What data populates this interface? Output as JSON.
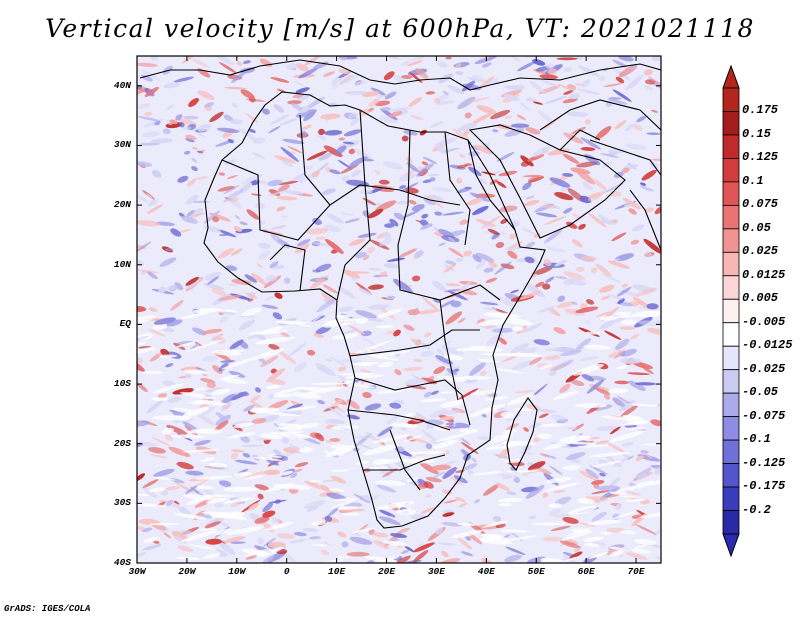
{
  "title": "Vertical velocity [m/s] at 600hPa, VT: 2021021118",
  "credit": "GrADS: IGES/COLA",
  "map": {
    "lon_range": [
      -30,
      75
    ],
    "lat_range": [
      -40,
      45
    ],
    "lat_ticks": [
      {
        "value": 40,
        "label": "40N"
      },
      {
        "value": 30,
        "label": "30N"
      },
      {
        "value": 20,
        "label": "20N"
      },
      {
        "value": 10,
        "label": "10N"
      },
      {
        "value": 0,
        "label": "EQ"
      },
      {
        "value": -10,
        "label": "10S"
      },
      {
        "value": -20,
        "label": "20S"
      },
      {
        "value": -30,
        "label": "30S"
      },
      {
        "value": -40,
        "label": "40S"
      }
    ],
    "lon_ticks": [
      {
        "value": -30,
        "label": "30W"
      },
      {
        "value": -20,
        "label": "20W"
      },
      {
        "value": -10,
        "label": "10W"
      },
      {
        "value": 0,
        "label": "0"
      },
      {
        "value": 10,
        "label": "10E"
      },
      {
        "value": 20,
        "label": "20E"
      },
      {
        "value": 30,
        "label": "30E"
      },
      {
        "value": 40,
        "label": "40E"
      },
      {
        "value": 50,
        "label": "50E"
      },
      {
        "value": 60,
        "label": "60E"
      },
      {
        "value": 70,
        "label": "70E"
      }
    ]
  },
  "colorbar": {
    "levels": [
      {
        "label": "0.175",
        "color": "#a51c1c"
      },
      {
        "label": "0.15",
        "color": "#c02a2a"
      },
      {
        "label": "0.125",
        "color": "#d33c3c"
      },
      {
        "label": "0.1",
        "color": "#e05656"
      },
      {
        "label": "0.075",
        "color": "#ea7474"
      },
      {
        "label": "0.05",
        "color": "#f29393"
      },
      {
        "label": "0.025",
        "color": "#f8b6b6"
      },
      {
        "label": "0.0125",
        "color": "#fcd6d6"
      },
      {
        "label": "0.005",
        "color": "#fff0f0"
      },
      {
        "label": "-0.005",
        "color": "#ffffff"
      },
      {
        "label": "-0.0125",
        "color": "#e6e6fa"
      },
      {
        "label": "-0.025",
        "color": "#cacaf3"
      },
      {
        "label": "-0.05",
        "color": "#abaaeb"
      },
      {
        "label": "-0.075",
        "color": "#8e8de3"
      },
      {
        "label": "-0.1",
        "color": "#7070d9"
      },
      {
        "label": "-0.125",
        "color": "#5454cc"
      },
      {
        "label": "-0.175",
        "color": "#3b3bbd"
      },
      {
        "label": "-0.2",
        "color": "#2a2aa8"
      }
    ],
    "top_color": "#b3261e",
    "bottom_color": "#2b2bb0"
  }
}
